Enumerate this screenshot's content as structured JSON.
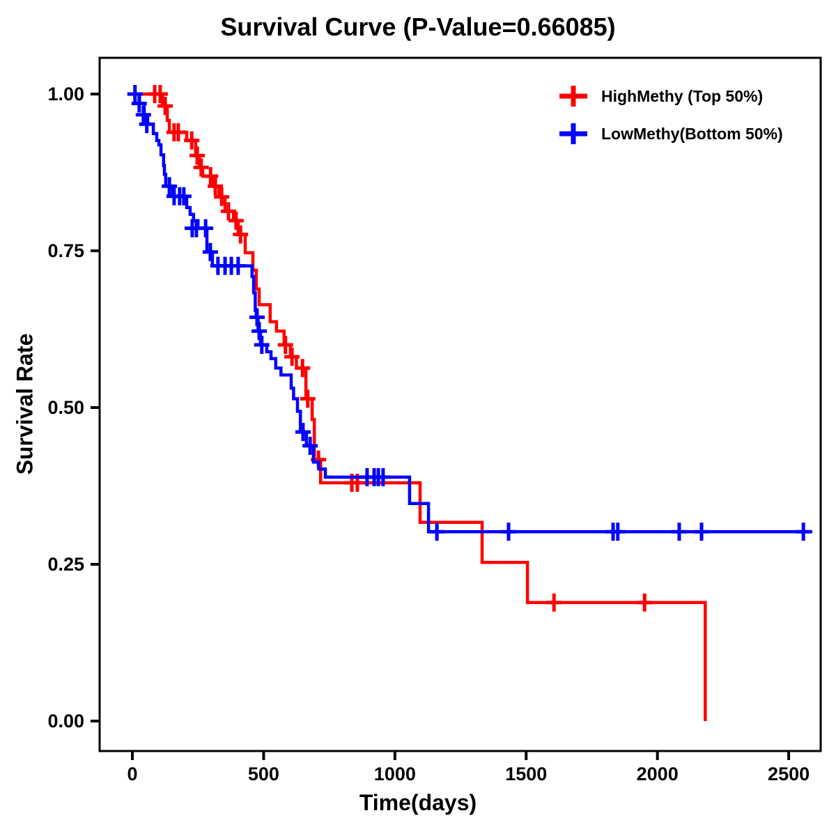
{
  "title": "Survival Curve (P-Value=0.66085)",
  "p_value": "0.66085",
  "axes": {
    "x": {
      "label": "Time(days)",
      "ticks": [
        0,
        500,
        1000,
        1500,
        2000,
        2500
      ],
      "tick_labels": [
        "0",
        "500",
        "1000",
        "1500",
        "2000",
        "2500"
      ],
      "range": [
        0,
        2620
      ]
    },
    "y": {
      "label": "Survival Rate",
      "ticks": [
        0.0,
        0.25,
        0.5,
        0.75,
        1.0
      ],
      "tick_labels": [
        "0.00",
        "0.25",
        "0.50",
        "0.75",
        "1.00"
      ],
      "range": [
        0.0,
        1.0
      ]
    }
  },
  "legend": [
    {
      "label": "HighMethy (Top 50%)",
      "color": "#FF0000",
      "marker": "plus-icon"
    },
    {
      "label": "LowMethy(Bottom 50%)",
      "color": "#0000FF",
      "marker": "plus-icon"
    }
  ],
  "colors": {
    "high_methy": "#FF0000",
    "low_methy": "#0000FF",
    "axis": "#000000",
    "background": "#FFFFFF"
  },
  "chart_data": {
    "type": "line",
    "subtype": "kaplan-meier-step-survival",
    "title": "Survival Curve (P-Value=0.66085)",
    "xlabel": "Time(days)",
    "ylabel": "Survival Rate",
    "xlim": [
      0,
      2620
    ],
    "ylim": [
      0.0,
      1.0
    ],
    "grid": false,
    "legend_position": "upper-right",
    "series": [
      {
        "name": "HighMethy (Top 50%)",
        "color": "#FF0000",
        "end_time": 2182,
        "steps": [
          [
            0,
            1.0
          ],
          [
            114,
            0.981
          ],
          [
            133,
            0.958
          ],
          [
            141,
            0.939
          ],
          [
            207,
            0.926
          ],
          [
            241,
            0.902
          ],
          [
            255,
            0.883
          ],
          [
            268,
            0.869
          ],
          [
            305,
            0.853
          ],
          [
            330,
            0.836
          ],
          [
            353,
            0.813
          ],
          [
            385,
            0.798
          ],
          [
            403,
            0.776
          ],
          [
            430,
            0.747
          ],
          [
            459,
            0.719
          ],
          [
            472,
            0.689
          ],
          [
            483,
            0.664
          ],
          [
            525,
            0.637
          ],
          [
            549,
            0.622
          ],
          [
            578,
            0.6
          ],
          [
            602,
            0.581
          ],
          [
            625,
            0.563
          ],
          [
            661,
            0.514
          ],
          [
            685,
            0.481
          ],
          [
            693,
            0.417
          ],
          [
            717,
            0.38
          ],
          [
            1096,
            0.317
          ],
          [
            1332,
            0.253
          ],
          [
            1505,
            0.189
          ],
          [
            2182,
            0.0
          ]
        ],
        "censors": [
          [
            85,
            1.0
          ],
          [
            106,
            1.0
          ],
          [
            125,
            0.981
          ],
          [
            159,
            0.939
          ],
          [
            175,
            0.939
          ],
          [
            226,
            0.926
          ],
          [
            247,
            0.902
          ],
          [
            262,
            0.883
          ],
          [
            298,
            0.869
          ],
          [
            316,
            0.853
          ],
          [
            340,
            0.836
          ],
          [
            366,
            0.813
          ],
          [
            395,
            0.798
          ],
          [
            412,
            0.776
          ],
          [
            583,
            0.6
          ],
          [
            608,
            0.581
          ],
          [
            648,
            0.563
          ],
          [
            668,
            0.514
          ],
          [
            709,
            0.417
          ],
          [
            836,
            0.38
          ],
          [
            857,
            0.38
          ],
          [
            1606,
            0.189
          ],
          [
            1951,
            0.189
          ]
        ]
      },
      {
        "name": "LowMethy(Bottom 50%)",
        "color": "#0000FF",
        "end_time": 2590,
        "steps": [
          [
            0,
            1.0
          ],
          [
            27,
            0.985
          ],
          [
            45,
            0.967
          ],
          [
            58,
            0.952
          ],
          [
            80,
            0.937
          ],
          [
            93,
            0.926
          ],
          [
            101,
            0.919
          ],
          [
            109,
            0.903
          ],
          [
            119,
            0.886
          ],
          [
            122,
            0.872
          ],
          [
            127,
            0.853
          ],
          [
            154,
            0.837
          ],
          [
            207,
            0.819
          ],
          [
            220,
            0.808
          ],
          [
            233,
            0.798
          ],
          [
            250,
            0.786
          ],
          [
            284,
            0.748
          ],
          [
            305,
            0.726
          ],
          [
            456,
            0.709
          ],
          [
            462,
            0.683
          ],
          [
            468,
            0.655
          ],
          [
            472,
            0.644
          ],
          [
            479,
            0.622
          ],
          [
            488,
            0.6
          ],
          [
            512,
            0.589
          ],
          [
            528,
            0.578
          ],
          [
            546,
            0.563
          ],
          [
            566,
            0.552
          ],
          [
            605,
            0.531
          ],
          [
            614,
            0.514
          ],
          [
            629,
            0.494
          ],
          [
            640,
            0.461
          ],
          [
            663,
            0.439
          ],
          [
            690,
            0.413
          ],
          [
            710,
            0.402
          ],
          [
            735,
            0.389
          ],
          [
            1056,
            0.347
          ],
          [
            1128,
            0.302
          ]
        ],
        "censors": [
          [
            10,
            1.0
          ],
          [
            26,
            0.985
          ],
          [
            42,
            0.967
          ],
          [
            55,
            0.952
          ],
          [
            141,
            0.853
          ],
          [
            159,
            0.837
          ],
          [
            180,
            0.837
          ],
          [
            196,
            0.837
          ],
          [
            228,
            0.786
          ],
          [
            244,
            0.786
          ],
          [
            279,
            0.786
          ],
          [
            297,
            0.748
          ],
          [
            326,
            0.726
          ],
          [
            353,
            0.726
          ],
          [
            377,
            0.726
          ],
          [
            403,
            0.726
          ],
          [
            475,
            0.644
          ],
          [
            483,
            0.622
          ],
          [
            493,
            0.6
          ],
          [
            650,
            0.461
          ],
          [
            677,
            0.439
          ],
          [
            894,
            0.389
          ],
          [
            921,
            0.389
          ],
          [
            937,
            0.389
          ],
          [
            955,
            0.389
          ],
          [
            1160,
            0.302
          ],
          [
            1433,
            0.302
          ],
          [
            1831,
            0.302
          ],
          [
            1849,
            0.302
          ],
          [
            2083,
            0.302
          ],
          [
            2168,
            0.302
          ],
          [
            2556,
            0.302
          ]
        ]
      }
    ]
  }
}
